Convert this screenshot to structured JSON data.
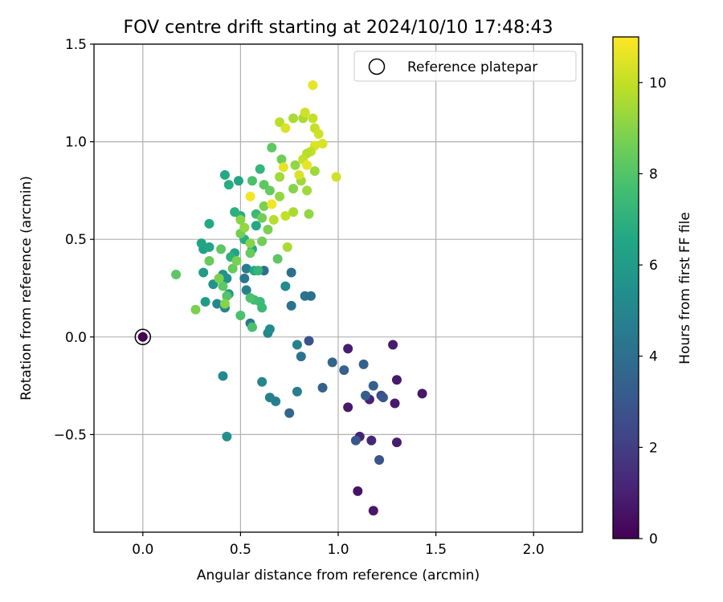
{
  "chart_data": {
    "type": "scatter",
    "title": "FOV centre drift starting at 2024/10/10 17:48:43",
    "xlabel": "Angular distance from reference (arcmin)",
    "ylabel": "Rotation from reference (arcmin)",
    "xlim": [
      -0.25,
      2.25
    ],
    "ylim": [
      -1.0,
      1.5
    ],
    "xticks": [
      0.0,
      0.5,
      1.0,
      1.5,
      2.0
    ],
    "xtick_labels": [
      "0.0",
      "0.5",
      "1.0",
      "1.5",
      "2.0"
    ],
    "yticks": [
      -0.5,
      0.0,
      0.5,
      1.0,
      1.5
    ],
    "ytick_labels": [
      "−0.5",
      "0.0",
      "0.5",
      "1.0",
      "1.5"
    ],
    "grid": true,
    "legend": {
      "position": "upper right",
      "entries": [
        "Reference platepar"
      ]
    },
    "colorbar": {
      "label": "Hours from first FF file",
      "colormap": "viridis",
      "range": [
        0,
        11
      ],
      "ticks": [
        0,
        2,
        4,
        6,
        8,
        10
      ],
      "tick_labels": [
        "0",
        "2",
        "4",
        "6",
        "8",
        "10"
      ]
    },
    "reference_point": {
      "x": 0.0,
      "y": 0.0,
      "c": 0.0
    },
    "series": [
      {
        "name": "FOV centre drift",
        "points": [
          {
            "x": 1.1,
            "y": -0.79,
            "c": 0.6
          },
          {
            "x": 1.18,
            "y": -0.89,
            "c": 0.7
          },
          {
            "x": 1.05,
            "y": -0.36,
            "c": 0.8
          },
          {
            "x": 1.16,
            "y": -0.32,
            "c": 1.0
          },
          {
            "x": 1.11,
            "y": -0.51,
            "c": 1.0
          },
          {
            "x": 1.17,
            "y": -0.53,
            "c": 1.2
          },
          {
            "x": 1.3,
            "y": -0.54,
            "c": 0.9
          },
          {
            "x": 1.29,
            "y": -0.34,
            "c": 0.8
          },
          {
            "x": 1.3,
            "y": -0.22,
            "c": 0.8
          },
          {
            "x": 1.43,
            "y": -0.29,
            "c": 0.7
          },
          {
            "x": 1.28,
            "y": -0.04,
            "c": 0.8
          },
          {
            "x": 1.05,
            "y": -0.06,
            "c": 0.9
          },
          {
            "x": 1.22,
            "y": -0.3,
            "c": 2.4
          },
          {
            "x": 1.21,
            "y": -0.63,
            "c": 2.8
          },
          {
            "x": 1.09,
            "y": -0.53,
            "c": 3.0
          },
          {
            "x": 1.14,
            "y": -0.3,
            "c": 3.2
          },
          {
            "x": 1.18,
            "y": -0.25,
            "c": 3.4
          },
          {
            "x": 1.23,
            "y": -0.31,
            "c": 3.0
          },
          {
            "x": 1.13,
            "y": -0.14,
            "c": 3.4
          },
          {
            "x": 1.03,
            "y": -0.17,
            "c": 3.4
          },
          {
            "x": 0.97,
            "y": -0.13,
            "c": 3.6
          },
          {
            "x": 0.92,
            "y": -0.26,
            "c": 3.4
          },
          {
            "x": 0.85,
            "y": -0.02,
            "c": 2.8
          },
          {
            "x": 0.75,
            "y": -0.39,
            "c": 3.6
          },
          {
            "x": 0.79,
            "y": -0.28,
            "c": 4.6
          },
          {
            "x": 0.81,
            "y": -0.1,
            "c": 4.2
          },
          {
            "x": 0.79,
            "y": -0.04,
            "c": 4.8
          },
          {
            "x": 0.68,
            "y": -0.33,
            "c": 4.8
          },
          {
            "x": 0.65,
            "y": -0.31,
            "c": 4.8
          },
          {
            "x": 0.61,
            "y": -0.23,
            "c": 5.0
          },
          {
            "x": 0.64,
            "y": 0.02,
            "c": 5.0
          },
          {
            "x": 0.65,
            "y": 0.04,
            "c": 5.2
          },
          {
            "x": 0.55,
            "y": 0.07,
            "c": 4.4
          },
          {
            "x": 0.41,
            "y": -0.2,
            "c": 5.2
          },
          {
            "x": 0.43,
            "y": -0.51,
            "c": 5.4
          },
          {
            "x": 0.76,
            "y": 0.16,
            "c": 4.2
          },
          {
            "x": 0.83,
            "y": 0.21,
            "c": 4.2
          },
          {
            "x": 0.86,
            "y": 0.21,
            "c": 4.0
          },
          {
            "x": 0.76,
            "y": 0.33,
            "c": 4.0
          },
          {
            "x": 0.73,
            "y": 0.26,
            "c": 5.2
          },
          {
            "x": 0.62,
            "y": 0.34,
            "c": 4.0
          },
          {
            "x": 0.52,
            "y": 0.3,
            "c": 4.4
          },
          {
            "x": 0.53,
            "y": 0.35,
            "c": 4.6
          },
          {
            "x": 0.53,
            "y": 0.24,
            "c": 4.8
          },
          {
            "x": 0.42,
            "y": 0.15,
            "c": 5.0
          },
          {
            "x": 0.38,
            "y": 0.17,
            "c": 5.0
          },
          {
            "x": 0.36,
            "y": 0.27,
            "c": 5.6
          },
          {
            "x": 0.41,
            "y": 0.32,
            "c": 5.6
          },
          {
            "x": 0.44,
            "y": 0.22,
            "c": 5.8
          },
          {
            "x": 0.43,
            "y": 0.3,
            "c": 5.6
          },
          {
            "x": 0.31,
            "y": 0.33,
            "c": 6.0
          },
          {
            "x": 0.32,
            "y": 0.18,
            "c": 6.0
          },
          {
            "x": 0.31,
            "y": 0.45,
            "c": 6.2
          },
          {
            "x": 0.3,
            "y": 0.48,
            "c": 6.4
          },
          {
            "x": 0.34,
            "y": 0.46,
            "c": 6.4
          },
          {
            "x": 0.34,
            "y": 0.58,
            "c": 6.6
          },
          {
            "x": 0.42,
            "y": 0.83,
            "c": 6.6
          },
          {
            "x": 0.49,
            "y": 0.8,
            "c": 6.4
          },
          {
            "x": 0.44,
            "y": 0.78,
            "c": 6.8
          },
          {
            "x": 0.47,
            "y": 0.43,
            "c": 6.4
          },
          {
            "x": 0.45,
            "y": 0.41,
            "c": 7.0
          },
          {
            "x": 0.5,
            "y": 0.62,
            "c": 6.8
          },
          {
            "x": 0.47,
            "y": 0.64,
            "c": 7.0
          },
          {
            "x": 0.52,
            "y": 0.5,
            "c": 6.8
          },
          {
            "x": 0.58,
            "y": 0.57,
            "c": 6.6
          },
          {
            "x": 0.57,
            "y": 0.34,
            "c": 6.6
          },
          {
            "x": 0.56,
            "y": 0.45,
            "c": 6.6
          },
          {
            "x": 0.6,
            "y": 0.86,
            "c": 7.2
          },
          {
            "x": 0.56,
            "y": 0.8,
            "c": 7.8
          },
          {
            "x": 0.58,
            "y": 0.63,
            "c": 7.4
          },
          {
            "x": 0.59,
            "y": 0.34,
            "c": 7.2
          },
          {
            "x": 0.6,
            "y": 0.18,
            "c": 7.4
          },
          {
            "x": 0.61,
            "y": 0.15,
            "c": 7.4
          },
          {
            "x": 0.57,
            "y": 0.19,
            "c": 7.6
          },
          {
            "x": 0.55,
            "y": 0.2,
            "c": 7.8
          },
          {
            "x": 0.56,
            "y": 0.05,
            "c": 7.8
          },
          {
            "x": 0.5,
            "y": 0.11,
            "c": 7.8
          },
          {
            "x": 0.43,
            "y": 0.21,
            "c": 8.0
          },
          {
            "x": 0.41,
            "y": 0.26,
            "c": 8.2
          },
          {
            "x": 0.39,
            "y": 0.3,
            "c": 8.0
          },
          {
            "x": 0.39,
            "y": 0.3,
            "c": 8.8
          },
          {
            "x": 0.27,
            "y": 0.14,
            "c": 8.8
          },
          {
            "x": 0.17,
            "y": 0.32,
            "c": 8.2
          },
          {
            "x": 0.34,
            "y": 0.39,
            "c": 8.4
          },
          {
            "x": 0.4,
            "y": 0.45,
            "c": 8.2
          },
          {
            "x": 0.46,
            "y": 0.35,
            "c": 8.4
          },
          {
            "x": 0.48,
            "y": 0.39,
            "c": 8.8
          },
          {
            "x": 0.42,
            "y": 0.17,
            "c": 9.0
          },
          {
            "x": 0.5,
            "y": 0.53,
            "c": 8.6
          },
          {
            "x": 0.5,
            "y": 0.6,
            "c": 9.0
          },
          {
            "x": 0.52,
            "y": 0.56,
            "c": 9.2
          },
          {
            "x": 0.55,
            "y": 0.48,
            "c": 9.0
          },
          {
            "x": 0.55,
            "y": 0.43,
            "c": 8.4
          },
          {
            "x": 0.61,
            "y": 0.49,
            "c": 8.6
          },
          {
            "x": 0.61,
            "y": 0.61,
            "c": 8.6
          },
          {
            "x": 0.62,
            "y": 0.67,
            "c": 8.8
          },
          {
            "x": 0.64,
            "y": 0.55,
            "c": 8.8
          },
          {
            "x": 0.65,
            "y": 0.75,
            "c": 8.4
          },
          {
            "x": 0.62,
            "y": 0.78,
            "c": 8.2
          },
          {
            "x": 0.66,
            "y": 0.97,
            "c": 8.2
          },
          {
            "x": 0.69,
            "y": 0.4,
            "c": 8.2
          },
          {
            "x": 0.7,
            "y": 0.72,
            "c": 9.2
          },
          {
            "x": 0.7,
            "y": 0.82,
            "c": 9.4
          },
          {
            "x": 0.71,
            "y": 0.91,
            "c": 8.6
          },
          {
            "x": 0.77,
            "y": 0.76,
            "c": 9.0
          },
          {
            "x": 0.78,
            "y": 0.88,
            "c": 9.2
          },
          {
            "x": 0.81,
            "y": 0.8,
            "c": 9.4
          },
          {
            "x": 0.84,
            "y": 0.75,
            "c": 9.4
          },
          {
            "x": 0.85,
            "y": 0.63,
            "c": 9.2
          },
          {
            "x": 0.88,
            "y": 0.85,
            "c": 9.4
          },
          {
            "x": 0.77,
            "y": 0.64,
            "c": 9.6
          },
          {
            "x": 0.73,
            "y": 0.62,
            "c": 10.0
          },
          {
            "x": 0.74,
            "y": 0.46,
            "c": 9.6
          },
          {
            "x": 0.67,
            "y": 0.6,
            "c": 9.8
          },
          {
            "x": 0.7,
            "y": 1.1,
            "c": 9.8
          },
          {
            "x": 0.73,
            "y": 1.07,
            "c": 10.4
          },
          {
            "x": 0.77,
            "y": 1.12,
            "c": 9.6
          },
          {
            "x": 0.82,
            "y": 1.12,
            "c": 9.6
          },
          {
            "x": 0.83,
            "y": 1.15,
            "c": 10.2
          },
          {
            "x": 0.87,
            "y": 1.12,
            "c": 10.0
          },
          {
            "x": 0.88,
            "y": 1.07,
            "c": 10.0
          },
          {
            "x": 0.9,
            "y": 1.04,
            "c": 10.2
          },
          {
            "x": 0.92,
            "y": 0.99,
            "c": 10.4
          },
          {
            "x": 0.87,
            "y": 1.29,
            "c": 10.6
          },
          {
            "x": 0.88,
            "y": 0.98,
            "c": 10.4
          },
          {
            "x": 0.86,
            "y": 0.95,
            "c": 10.0
          },
          {
            "x": 0.84,
            "y": 0.94,
            "c": 9.8
          },
          {
            "x": 0.82,
            "y": 0.91,
            "c": 10.0
          },
          {
            "x": 0.84,
            "y": 0.88,
            "c": 10.6
          },
          {
            "x": 0.8,
            "y": 0.83,
            "c": 10.4
          },
          {
            "x": 0.72,
            "y": 0.87,
            "c": 10.6
          },
          {
            "x": 0.55,
            "y": 0.72,
            "c": 10.8
          },
          {
            "x": 0.66,
            "y": 0.68,
            "c": 10.8
          },
          {
            "x": 0.99,
            "y": 0.82,
            "c": 10.2
          }
        ]
      }
    ]
  }
}
